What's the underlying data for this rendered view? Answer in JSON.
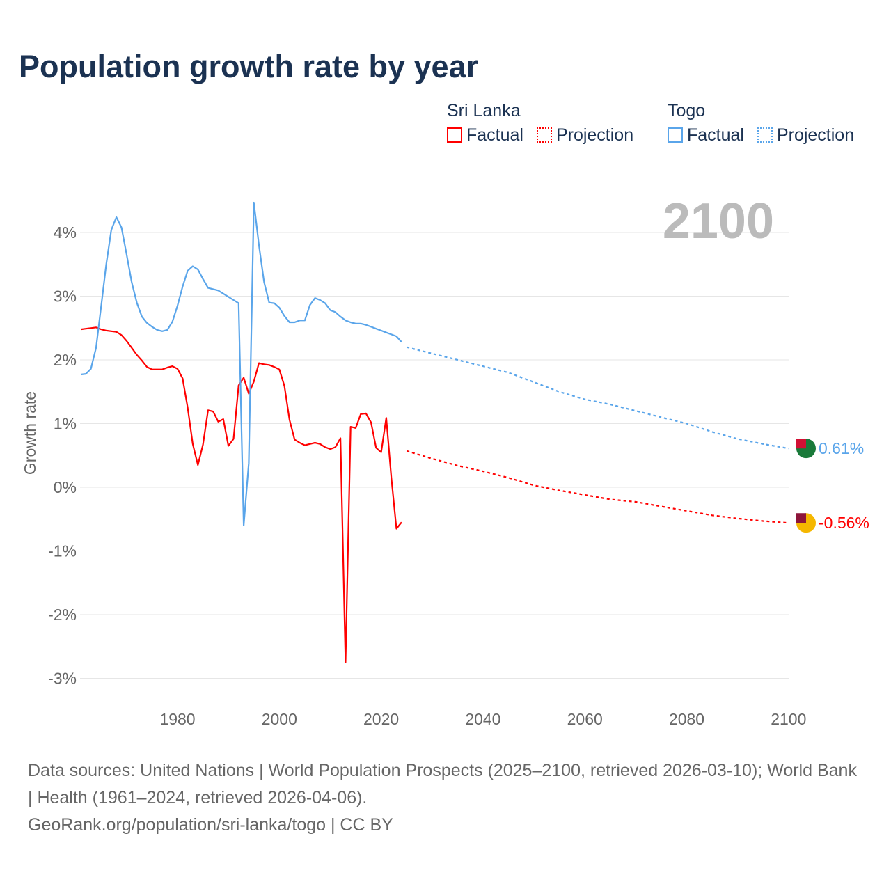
{
  "title": "Population growth rate by year",
  "legend": {
    "groups": [
      {
        "name": "Sri Lanka",
        "color": "#ff0000",
        "factual": "Factual",
        "projection": "Projection"
      },
      {
        "name": "Togo",
        "color": "#5aa5ea",
        "factual": "Factual",
        "projection": "Projection"
      }
    ]
  },
  "footer": {
    "sources": "Data sources: United Nations | World Population Prospects (2025–2100, retrieved 2026-03-10); World Bank | Health (1961–2024, retrieved 2026-04-06).",
    "link": "GeoRank.org/population/sri-lanka/togo | CC BY"
  },
  "chart_data": {
    "type": "line",
    "title": "Population growth rate by year",
    "ylabel": "Growth rate",
    "xlim": [
      1961,
      2100
    ],
    "ylim": [
      -3.3,
      4.6
    ],
    "yticks": [
      -3,
      -2,
      -1,
      0,
      1,
      2,
      3,
      4
    ],
    "ytick_labels": [
      "-3%",
      "-2%",
      "-1%",
      "0%",
      "1%",
      "2%",
      "3%",
      "4%"
    ],
    "xticks": [
      1980,
      2000,
      2020,
      2040,
      2060,
      2080,
      2100
    ],
    "xtick_labels": [
      "1980",
      "2000",
      "2020",
      "2040",
      "2060",
      "2080",
      "2100"
    ],
    "year_label": "2100",
    "series": [
      {
        "name": "Sri Lanka",
        "end_label": "-0.56%",
        "color": "#ff0000",
        "factual_start": 1961,
        "factual": [
          2.48,
          2.49,
          2.5,
          2.51,
          2.48,
          2.46,
          2.45,
          2.44,
          2.39,
          2.3,
          2.19,
          2.08,
          1.99,
          1.89,
          1.85,
          1.85,
          1.85,
          1.88,
          1.9,
          1.86,
          1.71,
          1.25,
          0.68,
          0.35,
          0.67,
          1.21,
          1.19,
          1.03,
          1.07,
          0.65,
          0.76,
          1.6,
          1.72,
          1.47,
          1.66,
          1.95,
          1.93,
          1.92,
          1.89,
          1.85,
          1.59,
          1.06,
          0.75,
          0.7,
          0.66,
          0.68,
          0.7,
          0.68,
          0.63,
          0.6,
          0.63,
          0.77,
          -2.75,
          0.95,
          0.93,
          1.15,
          1.16,
          1.02,
          0.62,
          0.55,
          1.09,
          0.15,
          -0.65,
          -0.55
        ],
        "projection_years": [
          2025,
          2030,
          2035,
          2040,
          2045,
          2050,
          2055,
          2060,
          2065,
          2070,
          2075,
          2080,
          2085,
          2090,
          2095,
          2100
        ],
        "projection": [
          0.57,
          0.45,
          0.34,
          0.25,
          0.15,
          0.03,
          -0.05,
          -0.12,
          -0.19,
          -0.23,
          -0.3,
          -0.37,
          -0.44,
          -0.49,
          -0.53,
          -0.56
        ]
      },
      {
        "name": "Togo",
        "end_label": "0.61%",
        "color": "#5aa5ea",
        "factual_start": 1961,
        "factual": [
          1.77,
          1.78,
          1.86,
          2.19,
          2.84,
          3.5,
          4.04,
          4.24,
          4.08,
          3.66,
          3.22,
          2.9,
          2.68,
          2.58,
          2.52,
          2.47,
          2.45,
          2.47,
          2.6,
          2.85,
          3.15,
          3.4,
          3.47,
          3.42,
          3.27,
          3.13,
          3.11,
          3.09,
          3.04,
          2.99,
          2.94,
          2.89,
          -0.6,
          0.38,
          4.47,
          3.8,
          3.22,
          2.9,
          2.89,
          2.82,
          2.69,
          2.59,
          2.59,
          2.62,
          2.62,
          2.86,
          2.97,
          2.94,
          2.89,
          2.78,
          2.75,
          2.68,
          2.62,
          2.59,
          2.57,
          2.57,
          2.55,
          2.52,
          2.49,
          2.46,
          2.43,
          2.4,
          2.37,
          2.28
        ],
        "projection_years": [
          2025,
          2030,
          2035,
          2040,
          2045,
          2050,
          2055,
          2060,
          2065,
          2070,
          2075,
          2080,
          2085,
          2090,
          2095,
          2100
        ],
        "projection": [
          2.2,
          2.1,
          2.0,
          1.9,
          1.8,
          1.65,
          1.5,
          1.38,
          1.3,
          1.2,
          1.1,
          1.0,
          0.87,
          0.76,
          0.68,
          0.61
        ]
      }
    ]
  }
}
